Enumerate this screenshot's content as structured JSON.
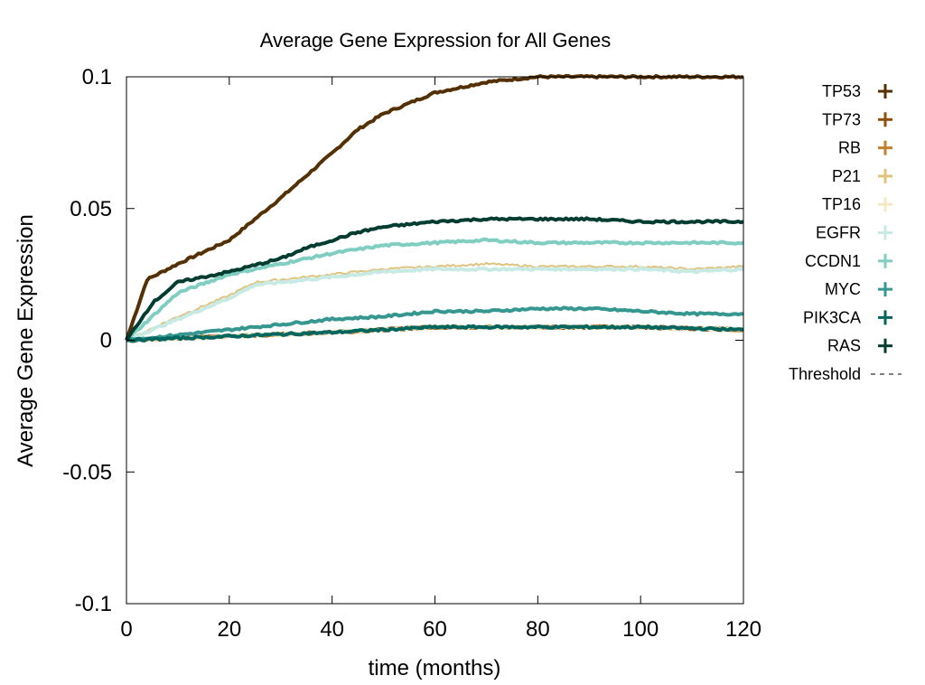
{
  "chart_data": {
    "type": "line",
    "title": "Average Gene Expression for All Genes",
    "xlabel": "time (months)",
    "ylabel": "Average Gene Expression",
    "xlim": [
      0,
      120
    ],
    "ylim": [
      -0.1,
      0.1
    ],
    "xticks": [
      "0",
      "20",
      "40",
      "60",
      "80",
      "100",
      "120"
    ],
    "yticks": [
      "0.1",
      "0.05",
      "0",
      "-0.05",
      "-0.1"
    ],
    "grid": false,
    "legend_position": "right",
    "series": [
      {
        "name": "TP53",
        "color": "#543005",
        "x": [
          0,
          4,
          10,
          20,
          30,
          40,
          45,
          50,
          60,
          70,
          80,
          100,
          120
        ],
        "y": [
          0,
          0.023,
          0.029,
          0.038,
          0.054,
          0.071,
          0.08,
          0.086,
          0.094,
          0.098,
          0.1,
          0.1,
          0.1
        ]
      },
      {
        "name": "TP73",
        "color": "#8c510a",
        "x": [
          0,
          20,
          40,
          60,
          80,
          100,
          120
        ],
        "y": [
          0,
          0.0015,
          0.003,
          0.005,
          0.005,
          0.005,
          0.004
        ]
      },
      {
        "name": "RB",
        "color": "#bf812d",
        "x": [
          0,
          20,
          40,
          60,
          80,
          100,
          120
        ],
        "y": [
          0,
          0.0015,
          0.003,
          0.005,
          0.005,
          0.005,
          0.004
        ]
      },
      {
        "name": "P21",
        "color": "#dfc27d",
        "x": [
          0,
          10,
          20,
          25,
          30,
          40,
          50,
          60,
          70,
          80,
          90,
          100,
          110,
          120
        ],
        "y": [
          0,
          0.009,
          0.017,
          0.022,
          0.023,
          0.025,
          0.027,
          0.028,
          0.029,
          0.028,
          0.028,
          0.028,
          0.027,
          0.028
        ]
      },
      {
        "name": "TP16",
        "color": "#f6e8c3",
        "x": [
          0,
          20,
          40,
          60,
          80,
          100,
          120
        ],
        "y": [
          0,
          0.0015,
          0.003,
          0.005,
          0.005,
          0.005,
          0.004
        ]
      },
      {
        "name": "EGFR",
        "color": "#c7eae5",
        "x": [
          0,
          10,
          20,
          25,
          30,
          40,
          50,
          60,
          70,
          80,
          90,
          100,
          110,
          120
        ],
        "y": [
          0,
          0.008,
          0.016,
          0.021,
          0.022,
          0.024,
          0.026,
          0.027,
          0.027,
          0.027,
          0.027,
          0.027,
          0.026,
          0.027
        ]
      },
      {
        "name": "CCDN1",
        "color": "#80cdc1",
        "x": [
          0,
          10,
          20,
          30,
          40,
          50,
          60,
          70,
          80,
          90,
          100,
          110,
          120
        ],
        "y": [
          0,
          0.018,
          0.025,
          0.029,
          0.033,
          0.036,
          0.037,
          0.038,
          0.037,
          0.037,
          0.037,
          0.037,
          0.037
        ]
      },
      {
        "name": "MYC",
        "color": "#35978f",
        "x": [
          0,
          10,
          20,
          30,
          40,
          50,
          60,
          70,
          80,
          90,
          100,
          110,
          120
        ],
        "y": [
          0,
          0.002,
          0.004,
          0.006,
          0.008,
          0.009,
          0.011,
          0.011,
          0.012,
          0.012,
          0.011,
          0.01,
          0.01
        ]
      },
      {
        "name": "PIK3CA",
        "color": "#01665e",
        "x": [
          0,
          20,
          40,
          60,
          80,
          100,
          120
        ],
        "y": [
          0,
          0.0015,
          0.003,
          0.005,
          0.005,
          0.005,
          0.004
        ]
      },
      {
        "name": "RAS",
        "color": "#003c30",
        "x": [
          0,
          5,
          10,
          20,
          30,
          35,
          40,
          45,
          50,
          60,
          70,
          80,
          90,
          100,
          110,
          120
        ],
        "y": [
          0,
          0.014,
          0.022,
          0.026,
          0.031,
          0.035,
          0.038,
          0.041,
          0.043,
          0.045,
          0.046,
          0.046,
          0.046,
          0.045,
          0.045,
          0.045
        ]
      }
    ],
    "threshold": {
      "name": "Threshold",
      "style": "dashed"
    }
  }
}
